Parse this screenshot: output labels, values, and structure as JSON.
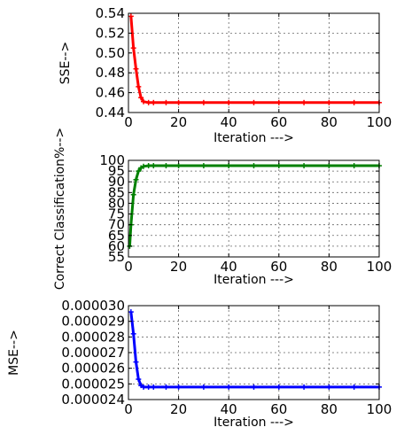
{
  "chart_data": [
    {
      "type": "line",
      "ylabel": "SSE-->",
      "xlabel": "Iteration --->",
      "xlim": [
        0,
        100
      ],
      "ylim": [
        0.44,
        0.54
      ],
      "x_ticks": [
        "0",
        "20",
        "40",
        "60",
        "80",
        "100"
      ],
      "y_ticks": [
        "0.44",
        "0.46",
        "0.48",
        "0.50",
        "0.52",
        "0.54"
      ],
      "grid": true,
      "series": [
        {
          "color": "#ff0000",
          "marker": "plus",
          "x": [
            1,
            2,
            3,
            4,
            5,
            6,
            8,
            10,
            15,
            20,
            30,
            40,
            50,
            60,
            70,
            80,
            90,
            100
          ],
          "y": [
            0.537,
            0.505,
            0.484,
            0.466,
            0.455,
            0.451,
            0.45,
            0.45,
            0.45,
            0.45,
            0.45,
            0.45,
            0.45,
            0.45,
            0.45,
            0.45,
            0.45,
            0.45
          ]
        }
      ]
    },
    {
      "type": "line",
      "ylabel": "Correct Classification%-->",
      "xlabel": "Iteration --->",
      "xlim": [
        0,
        100
      ],
      "ylim": [
        55,
        100
      ],
      "x_ticks": [
        "0",
        "20",
        "40",
        "60",
        "80",
        "100"
      ],
      "y_ticks": [
        "55",
        "60",
        "65",
        "70",
        "75",
        "80",
        "85",
        "90",
        "95",
        "100"
      ],
      "grid": true,
      "series": [
        {
          "color": "#008000",
          "marker": "plus",
          "x": [
            0.5,
            1,
            2,
            3,
            4,
            5,
            6,
            8,
            10,
            15,
            20,
            30,
            40,
            50,
            60,
            70,
            80,
            90,
            100
          ],
          "y": [
            60,
            70,
            84,
            91,
            95,
            96.5,
            97.2,
            97.5,
            97.5,
            97.5,
            97.5,
            97.5,
            97.5,
            97.5,
            97.5,
            97.5,
            97.5,
            97.5,
            97.5
          ]
        }
      ]
    },
    {
      "type": "line",
      "ylabel": "MSE-->",
      "xlabel": "Iteration --->",
      "xlim": [
        0,
        100
      ],
      "ylim": [
        2.4e-05,
        3e-05
      ],
      "x_ticks": [
        "0",
        "20",
        "40",
        "60",
        "80",
        "100"
      ],
      "y_ticks": [
        "0.000024",
        "0.000025",
        "0.000026",
        "0.000027",
        "0.000028",
        "0.000029",
        "0.000030"
      ],
      "grid": true,
      "series": [
        {
          "color": "#0000ff",
          "marker": "plus",
          "x": [
            1,
            2,
            3,
            4,
            5,
            6,
            8,
            10,
            15,
            20,
            30,
            40,
            50,
            60,
            70,
            80,
            90,
            100
          ],
          "y": [
            2.96e-05,
            2.82e-05,
            2.64e-05,
            2.53e-05,
            2.49e-05,
            2.48e-05,
            2.48e-05,
            2.48e-05,
            2.48e-05,
            2.48e-05,
            2.48e-05,
            2.48e-05,
            2.48e-05,
            2.48e-05,
            2.48e-05,
            2.48e-05,
            2.48e-05,
            2.48e-05
          ]
        }
      ]
    }
  ]
}
